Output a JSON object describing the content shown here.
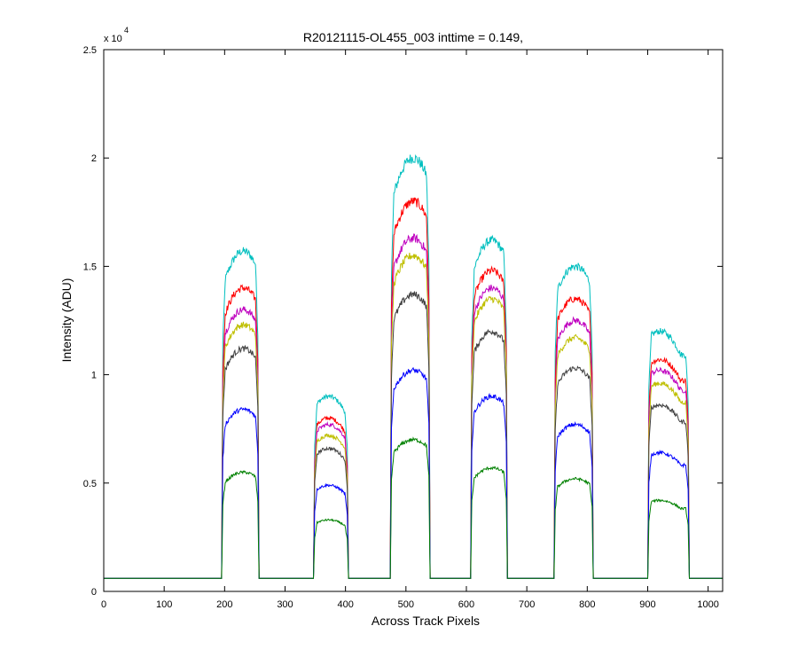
{
  "chart_data": {
    "type": "line",
    "title": "R20121115-OL455_003 inttime = 0.149,",
    "xlabel": "Across Track Pixels",
    "ylabel": "Intensity (ADU)",
    "y_exponent_label": "x 10",
    "y_exponent_power": "4",
    "xlim": [
      0,
      1024
    ],
    "ylim": [
      0,
      25000
    ],
    "x_ticks": [
      0,
      100,
      200,
      300,
      400,
      500,
      600,
      700,
      800,
      900,
      1000
    ],
    "y_ticks": [
      0,
      5000,
      10000,
      15000,
      20000,
      25000
    ],
    "y_tick_labels": [
      "0",
      "0.5",
      "1",
      "1.5",
      "2",
      "2.5"
    ],
    "grid": false,
    "legend": "none",
    "baseline": 600,
    "baseline_start_x": 0,
    "peaks": [
      {
        "x_start": 195,
        "x_end": 257,
        "center": 231
      },
      {
        "x_start": 347,
        "x_end": 405,
        "center": 372
      },
      {
        "x_start": 474,
        "x_end": 540,
        "center": 512
      },
      {
        "x_start": 607,
        "x_end": 668,
        "center": 642
      },
      {
        "x_start": 745,
        "x_end": 810,
        "center": 780
      },
      {
        "x_start": 900,
        "x_end": 969,
        "center": 920
      }
    ],
    "series": [
      {
        "color": "#00bfbf",
        "plateau": [
          15700,
          9000,
          20000,
          16200,
          15000,
          12000
        ]
      },
      {
        "color": "#ff0000",
        "plateau": [
          14000,
          8000,
          18000,
          14800,
          13500,
          10700
        ]
      },
      {
        "color": "#bf00bf",
        "plateau": [
          13000,
          7700,
          16300,
          14000,
          12500,
          10200
        ]
      },
      {
        "color": "#bfbf00",
        "plateau": [
          12300,
          7200,
          15500,
          13500,
          11700,
          9600
        ]
      },
      {
        "color": "#404040",
        "plateau": [
          11200,
          6600,
          13700,
          12000,
          10300,
          8600
        ]
      },
      {
        "color": "#0000ff",
        "plateau": [
          8400,
          4900,
          10200,
          9000,
          7700,
          6400
        ]
      },
      {
        "color": "#008000",
        "plateau": [
          5500,
          3300,
          7000,
          5700,
          5200,
          4200
        ]
      }
    ]
  }
}
